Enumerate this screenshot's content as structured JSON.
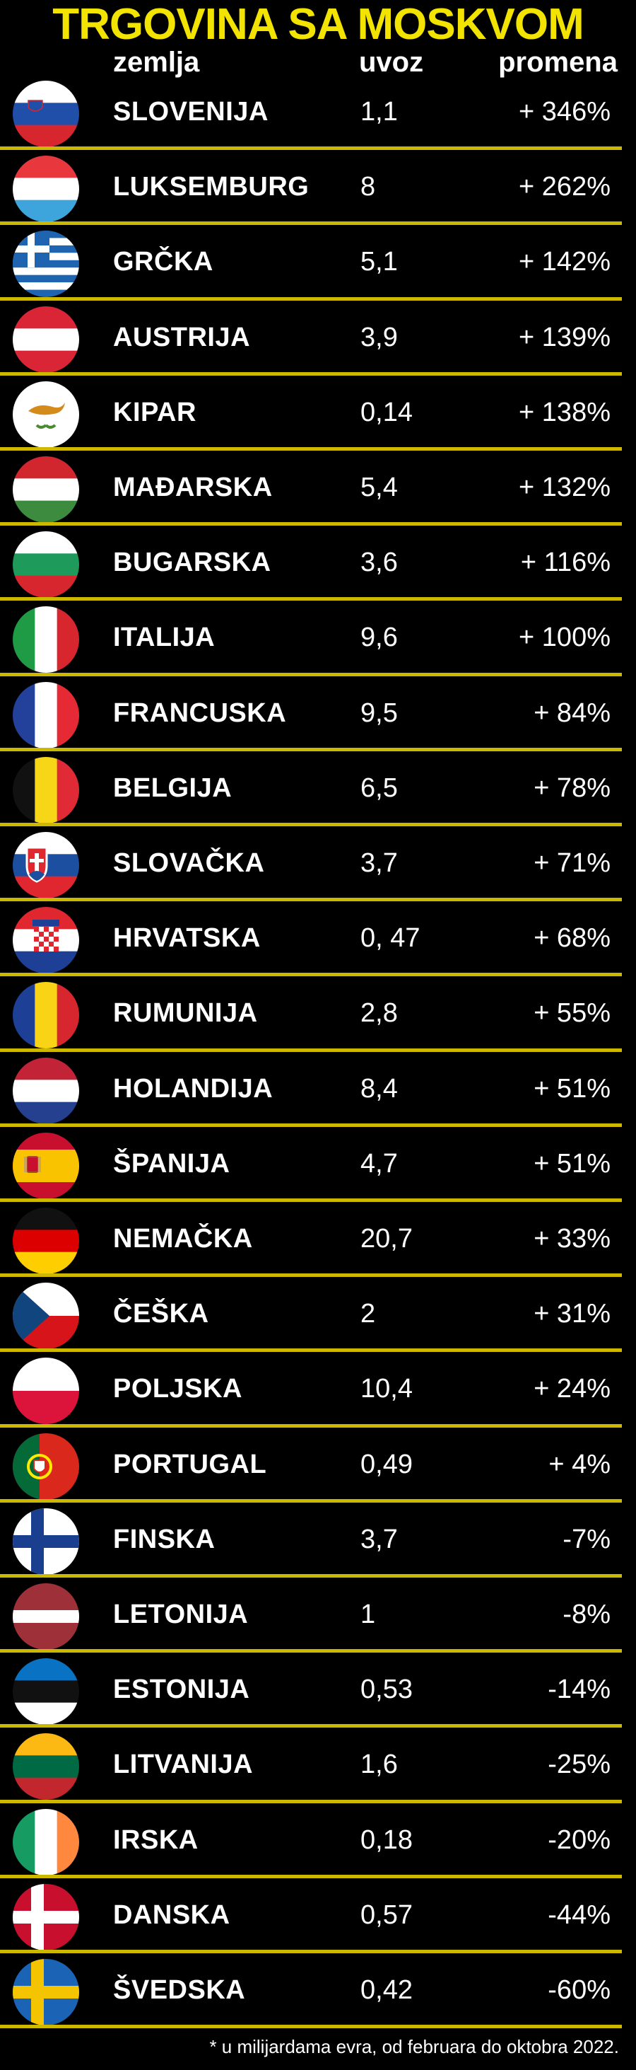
{
  "title": "TRGOVINA SA MOSKVOM",
  "columns": {
    "country": "zemlja",
    "import": "uvoz",
    "change": "promena"
  },
  "footnote": "* u milijardama evra, od februara do oktobra 2022.",
  "colors": {
    "background": "#000000",
    "title": "#f2e400",
    "separator": "#cdb800",
    "text": "#ffffff"
  },
  "chart_data": {
    "type": "table",
    "title": "TRGOVINA SA MOSKVOM",
    "columns": [
      "zemlja",
      "uvoz",
      "promena"
    ],
    "rows": [
      {
        "flag": "slovenia-flag-icon",
        "country": "SLOVENIJA",
        "import": "1,1",
        "change": "+ 346%"
      },
      {
        "flag": "luxembourg-flag-icon",
        "country": "LUKSEMBURG",
        "import": "8",
        "change": "+ 262%"
      },
      {
        "flag": "greece-flag-icon",
        "country": "GRČKA",
        "import": "5,1",
        "change": "+ 142%"
      },
      {
        "flag": "austria-flag-icon",
        "country": "AUSTRIJA",
        "import": "3,9",
        "change": "+ 139%"
      },
      {
        "flag": "cyprus-flag-icon",
        "country": "KIPAR",
        "import": "0,14",
        "change": "+ 138%"
      },
      {
        "flag": "hungary-flag-icon",
        "country": "MAĐARSKA",
        "import": "5,4",
        "change": "+ 132%"
      },
      {
        "flag": "bulgaria-flag-icon",
        "country": "BUGARSKA",
        "import": "3,6",
        "change": "+ 116%"
      },
      {
        "flag": "italy-flag-icon",
        "country": "ITALIJA",
        "import": "9,6",
        "change": "+ 100%"
      },
      {
        "flag": "france-flag-icon",
        "country": "FRANCUSKA",
        "import": "9,5",
        "change": "+ 84%"
      },
      {
        "flag": "belgium-flag-icon",
        "country": "BELGIJA",
        "import": "6,5",
        "change": "+ 78%"
      },
      {
        "flag": "slovakia-flag-icon",
        "country": "SLOVAČKA",
        "import": "3,7",
        "change": "+ 71%"
      },
      {
        "flag": "croatia-flag-icon",
        "country": "HRVATSKA",
        "import": "0, 47",
        "change": "+ 68%"
      },
      {
        "flag": "romania-flag-icon",
        "country": "RUMUNIJA",
        "import": "2,8",
        "change": "+ 55%"
      },
      {
        "flag": "netherlands-flag-icon",
        "country": "HOLANDIJA",
        "import": "8,4",
        "change": "+ 51%"
      },
      {
        "flag": "spain-flag-icon",
        "country": "ŠPANIJA",
        "import": "4,7",
        "change": "+ 51%"
      },
      {
        "flag": "germany-flag-icon",
        "country": "NEMAČKA",
        "import": "20,7",
        "change": "+ 33%"
      },
      {
        "flag": "czechia-flag-icon",
        "country": "ČEŠKA",
        "import": "2",
        "change": "+ 31%"
      },
      {
        "flag": "poland-flag-icon",
        "country": "POLJSKA",
        "import": "10,4",
        "change": "+ 24%"
      },
      {
        "flag": "portugal-flag-icon",
        "country": "PORTUGAL",
        "import": "0,49",
        "change": "+ 4%"
      },
      {
        "flag": "finland-flag-icon",
        "country": "FINSKA",
        "import": "3,7",
        "change": "-7%"
      },
      {
        "flag": "latvia-flag-icon",
        "country": "LETONIJA",
        "import": "1",
        "change": "-8%"
      },
      {
        "flag": "estonia-flag-icon",
        "country": "ESTONIJA",
        "import": "0,53",
        "change": "-14%"
      },
      {
        "flag": "lithuania-flag-icon",
        "country": "LITVANIJA",
        "import": "1,6",
        "change": "-25%"
      },
      {
        "flag": "ireland-flag-icon",
        "country": "IRSKA",
        "import": "0,18",
        "change": "-20%"
      },
      {
        "flag": "denmark-flag-icon",
        "country": "DANSKA",
        "import": "0,57",
        "change": "-44%"
      },
      {
        "flag": "sweden-flag-icon",
        "country": "ŠVEDSKA",
        "import": "0,42",
        "change": "-60%"
      }
    ]
  }
}
